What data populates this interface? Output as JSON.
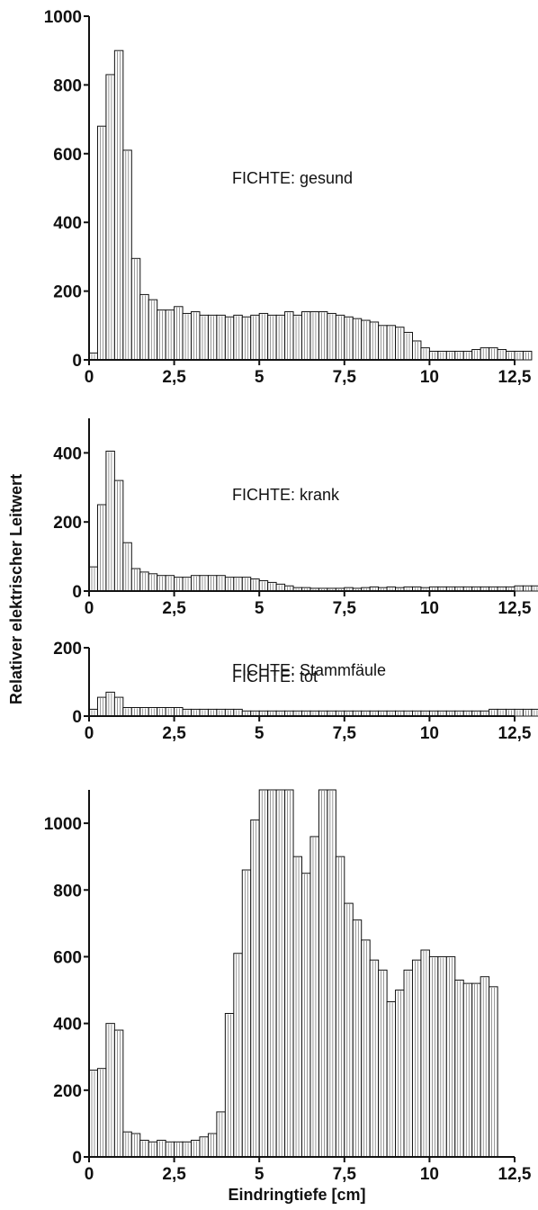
{
  "figure": {
    "ylabel": "Relativer elektrischer Leitwert",
    "xlabel": "Eindringtiefe  [cm]"
  },
  "chart_data": [
    {
      "type": "bar",
      "title": "FICHTE:  gesund",
      "xlim": [
        0,
        12.5
      ],
      "ylim": [
        0,
        1000
      ],
      "bin_width": 0.25,
      "xticks": [
        0,
        2.5,
        5,
        7.5,
        10,
        12.5
      ],
      "xtick_labels": [
        "0",
        "2,5",
        "5",
        "7,5",
        "10",
        "12,5"
      ],
      "yticks": [
        0,
        200,
        400,
        600,
        800,
        1000
      ],
      "ytick_labels": [
        "0",
        "200",
        "400",
        "600",
        "800",
        "1000"
      ],
      "values": [
        20,
        680,
        830,
        900,
        610,
        295,
        190,
        175,
        145,
        145,
        155,
        135,
        140,
        130,
        130,
        130,
        125,
        130,
        125,
        130,
        135,
        130,
        130,
        140,
        130,
        140,
        140,
        140,
        135,
        130,
        125,
        120,
        115,
        110,
        100,
        100,
        95,
        80,
        55,
        35,
        25,
        25,
        25,
        25,
        25,
        30,
        35,
        35,
        30,
        25,
        25,
        25
      ]
    },
    {
      "type": "bar",
      "title": "FICHTE:  krank",
      "xlim": [
        0,
        12.5
      ],
      "ylim": [
        0,
        500
      ],
      "bin_width": 0.25,
      "xticks": [
        0,
        2.5,
        5,
        7.5,
        10,
        12.5
      ],
      "xtick_labels": [
        "0",
        "2,5",
        "5",
        "7,5",
        "10",
        "12,5"
      ],
      "yticks": [
        0,
        200,
        400
      ],
      "ytick_labels": [
        "0",
        "200",
        "400"
      ],
      "values": [
        70,
        250,
        405,
        320,
        140,
        65,
        55,
        50,
        45,
        45,
        40,
        40,
        45,
        45,
        45,
        45,
        40,
        40,
        40,
        35,
        30,
        25,
        20,
        15,
        10,
        10,
        8,
        8,
        8,
        8,
        10,
        8,
        10,
        12,
        10,
        12,
        10,
        12,
        12,
        10,
        12,
        12,
        12,
        12,
        12,
        12,
        12,
        12,
        12,
        12,
        15,
        15,
        15,
        15,
        15,
        15,
        15
      ]
    },
    {
      "type": "bar",
      "title": "FICHTE:  tot",
      "xlim": [
        0,
        12.5
      ],
      "ylim": [
        0,
        200
      ],
      "bin_width": 0.25,
      "xticks": [
        0,
        2.5,
        5,
        7.5,
        10,
        12.5
      ],
      "xtick_labels": [
        "0",
        "2,5",
        "5",
        "7,5",
        "10",
        "12,5"
      ],
      "yticks": [
        0,
        200
      ],
      "ytick_labels": [
        "0",
        "200"
      ],
      "values": [
        20,
        55,
        70,
        55,
        25,
        25,
        25,
        25,
        25,
        25,
        25,
        20,
        20,
        20,
        20,
        20,
        20,
        20,
        15,
        15,
        15,
        15,
        15,
        15,
        15,
        15,
        15,
        15,
        15,
        15,
        15,
        15,
        15,
        15,
        15,
        15,
        15,
        15,
        15,
        15,
        15,
        15,
        15,
        15,
        15,
        15,
        15,
        20,
        20,
        20,
        20,
        20,
        20,
        25,
        25,
        25,
        25,
        25
      ]
    },
    {
      "type": "bar",
      "title": "FICHTE:  Stammfäule",
      "xlim": [
        0,
        12.5
      ],
      "ylim": [
        0,
        1100
      ],
      "bin_width": 0.25,
      "xticks": [
        0,
        2.5,
        5,
        7.5,
        10,
        12.5
      ],
      "xtick_labels": [
        "0",
        "2,5",
        "5",
        "7,5",
        "10",
        "12,5"
      ],
      "yticks": [
        0,
        200,
        400,
        600,
        800,
        1000
      ],
      "ytick_labels": [
        "0",
        "200",
        "400",
        "600",
        "800",
        "1000"
      ],
      "values": [
        260,
        265,
        400,
        380,
        75,
        70,
        50,
        45,
        50,
        45,
        45,
        45,
        50,
        60,
        70,
        135,
        430,
        610,
        860,
        1010,
        1100,
        1100,
        1100,
        1100,
        900,
        850,
        960,
        1100,
        1100,
        900,
        760,
        710,
        650,
        590,
        560,
        465,
        500,
        560,
        590,
        620,
        600,
        600,
        600,
        530,
        520,
        520,
        540,
        510
      ]
    }
  ]
}
